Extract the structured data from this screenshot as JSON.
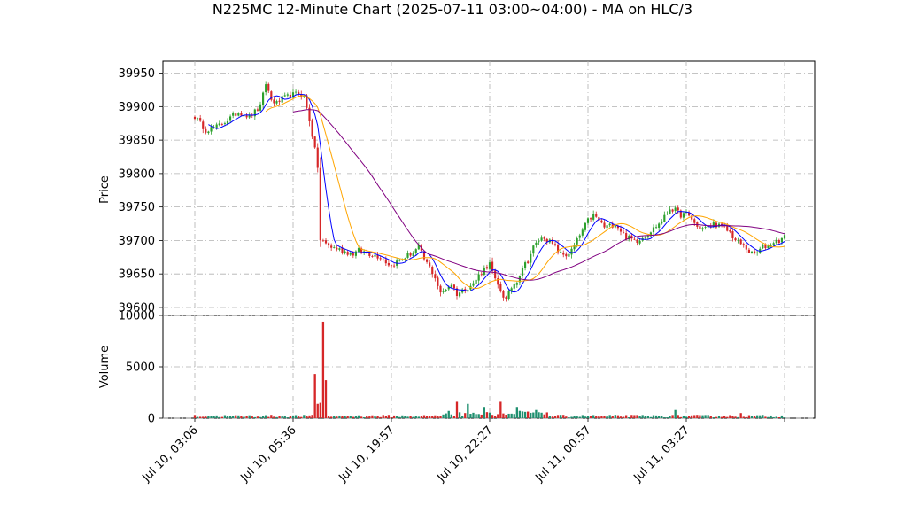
{
  "chart_data": {
    "type": "candlestick",
    "title": "N225MC 12-Minute Chart (2025-07-11 03:00~04:00) - MA on HLC/3",
    "price_panel": {
      "ylabel": "Price",
      "ylim": [
        39588,
        39968
      ],
      "yticks": [
        39600,
        39650,
        39700,
        39750,
        39800,
        39850,
        39900,
        39950
      ],
      "grid": true,
      "bull_color": "#2ca02c",
      "bear_color": "#d62728",
      "moving_averages": [
        {
          "id": "ma-fast",
          "color": "#0000ff"
        },
        {
          "id": "ma-mid",
          "color": "#ffa500"
        },
        {
          "id": "ma-slow",
          "color": "#800080"
        }
      ],
      "close_anchors": [
        [
          0,
          39885
        ],
        [
          4,
          39865
        ],
        [
          8,
          39870
        ],
        [
          12,
          39880
        ],
        [
          16,
          39892
        ],
        [
          20,
          39885
        ],
        [
          24,
          39900
        ],
        [
          26,
          39935
        ],
        [
          28,
          39910
        ],
        [
          30,
          39905
        ],
        [
          32,
          39912
        ],
        [
          34,
          39915
        ],
        [
          36,
          39918
        ],
        [
          38,
          39920
        ],
        [
          40,
          39915
        ],
        [
          42,
          39880
        ],
        [
          44,
          39835
        ],
        [
          45,
          39810
        ],
        [
          46,
          39700
        ],
        [
          48,
          39695
        ],
        [
          50,
          39690
        ],
        [
          52,
          39688
        ],
        [
          54,
          39685
        ],
        [
          56,
          39682
        ],
        [
          58,
          39680
        ],
        [
          60,
          39685
        ],
        [
          62,
          39683
        ],
        [
          64,
          39680
        ],
        [
          66,
          39678
        ],
        [
          68,
          39675
        ],
        [
          70,
          39668
        ],
        [
          72,
          39662
        ],
        [
          74,
          39668
        ],
        [
          76,
          39672
        ],
        [
          78,
          39678
        ],
        [
          80,
          39682
        ],
        [
          82,
          39690
        ],
        [
          84,
          39672
        ],
        [
          86,
          39660
        ],
        [
          88,
          39645
        ],
        [
          90,
          39620
        ],
        [
          92,
          39628
        ],
        [
          94,
          39635
        ],
        [
          96,
          39620
        ],
        [
          98,
          39625
        ],
        [
          100,
          39630
        ],
        [
          102,
          39635
        ],
        [
          104,
          39648
        ],
        [
          106,
          39658
        ],
        [
          108,
          39665
        ],
        [
          110,
          39640
        ],
        [
          112,
          39625
        ],
        [
          114,
          39610
        ],
        [
          116,
          39630
        ],
        [
          118,
          39640
        ],
        [
          120,
          39660
        ],
        [
          122,
          39670
        ],
        [
          124,
          39690
        ],
        [
          126,
          39700
        ],
        [
          128,
          39705
        ],
        [
          130,
          39698
        ],
        [
          132,
          39690
        ],
        [
          134,
          39680
        ],
        [
          136,
          39678
        ],
        [
          138,
          39685
        ],
        [
          140,
          39700
        ],
        [
          142,
          39715
        ],
        [
          144,
          39730
        ],
        [
          146,
          39738
        ],
        [
          148,
          39730
        ],
        [
          150,
          39720
        ],
        [
          152,
          39722
        ],
        [
          154,
          39725
        ],
        [
          156,
          39715
        ],
        [
          158,
          39705
        ],
        [
          160,
          39702
        ],
        [
          162,
          39700
        ],
        [
          164,
          39705
        ],
        [
          166,
          39710
        ],
        [
          168,
          39718
        ],
        [
          170,
          39725
        ],
        [
          172,
          39735
        ],
        [
          174,
          39748
        ],
        [
          176,
          39745
        ],
        [
          178,
          39738
        ],
        [
          180,
          39740
        ],
        [
          182,
          39732
        ],
        [
          184,
          39720
        ],
        [
          186,
          39718
        ],
        [
          188,
          39720
        ],
        [
          190,
          39725
        ],
        [
          192,
          39722
        ],
        [
          194,
          39718
        ],
        [
          196,
          39712
        ],
        [
          198,
          39700
        ],
        [
          200,
          39695
        ],
        [
          202,
          39688
        ],
        [
          204,
          39680
        ],
        [
          206,
          39682
        ],
        [
          208,
          39690
        ],
        [
          210,
          39692
        ],
        [
          212,
          39698
        ],
        [
          214,
          39700
        ],
        [
          216,
          39705
        ]
      ]
    },
    "volume_panel": {
      "ylabel": "Volume",
      "ylim": [
        0,
        10000
      ],
      "yticks": [
        0,
        5000,
        10000
      ],
      "grid": true,
      "spikes": [
        [
          44,
          4300
        ],
        [
          45,
          1400
        ],
        [
          46,
          1500
        ],
        [
          47,
          9400
        ],
        [
          48,
          3700
        ],
        [
          96,
          1600
        ],
        [
          100,
          1400
        ],
        [
          106,
          1100
        ],
        [
          112,
          1600
        ],
        [
          118,
          1100
        ],
        [
          125,
          800
        ],
        [
          176,
          800
        ],
        [
          200,
          500
        ]
      ]
    },
    "x_axis": {
      "count": 217,
      "tick_positions": [
        0,
        36,
        72,
        108,
        144,
        180,
        216
      ],
      "tick_labels": [
        "Jul 10, 03:06",
        "Jul 10, 05:36",
        "Jul 10, 19:57",
        "Jul 10, 22:27",
        "Jul 11, 00:57",
        "Jul 11, 03:27",
        ""
      ]
    }
  }
}
